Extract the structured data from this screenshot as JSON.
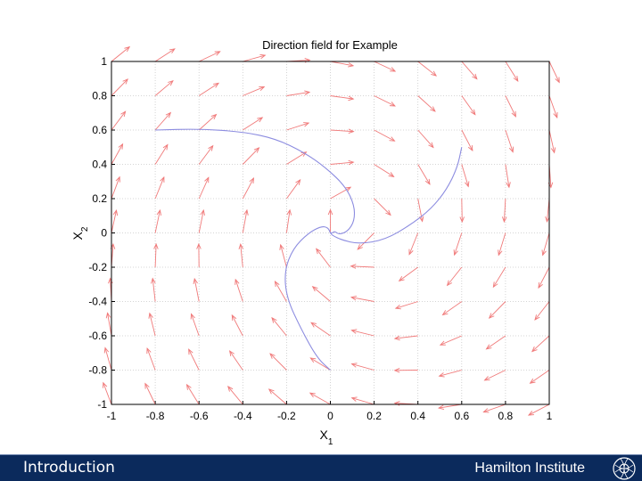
{
  "chart_data": {
    "type": "vector-field",
    "title": "Direction field for Example",
    "xlabel": "X",
    "xlabel_sub": "1",
    "ylabel": "X",
    "ylabel_sub": "2",
    "xlim": [
      -1,
      1
    ],
    "ylim": [
      -1,
      1
    ],
    "xticks": [
      "-1",
      "-0.8",
      "-0.6",
      "-0.4",
      "-0.2",
      "0",
      "0.2",
      "0.4",
      "0.6",
      "0.8",
      "1"
    ],
    "yticks": [
      "1",
      "0.8",
      "0.6",
      "0.4",
      "0.2",
      "0",
      "-0.2",
      "-0.4",
      "-0.6",
      "-0.8",
      "-1"
    ],
    "grid": true,
    "field_colors": {
      "arrows": "#f07a7a",
      "trajectories": "#8c8ce0",
      "grid": "#c8c8c8"
    },
    "trajectories": [
      {
        "points": [
          [
            -0.8,
            0.6
          ],
          [
            -0.6,
            0.607
          ],
          [
            -0.4,
            0.59
          ],
          [
            -0.25,
            0.55
          ],
          [
            -0.12,
            0.47
          ],
          [
            -0.02,
            0.38
          ],
          [
            0.07,
            0.27
          ],
          [
            0.11,
            0.16
          ],
          [
            0.11,
            0.07
          ],
          [
            0.08,
            0.01
          ],
          [
            0.04,
            -0.01
          ],
          [
            0.02,
            0.01
          ],
          [
            0.01,
            0.0
          ],
          [
            0.0,
            0.0
          ]
        ]
      },
      {
        "points": [
          [
            0.6,
            0.5
          ],
          [
            0.58,
            0.38
          ],
          [
            0.53,
            0.25
          ],
          [
            0.46,
            0.14
          ],
          [
            0.37,
            0.05
          ],
          [
            0.25,
            -0.04
          ],
          [
            0.13,
            -0.065
          ],
          [
            0.05,
            -0.04
          ],
          [
            0.01,
            -0.015
          ],
          [
            0.0,
            0.0
          ]
        ]
      },
      {
        "points": [
          [
            0.0,
            -0.8
          ],
          [
            -0.06,
            -0.73
          ],
          [
            -0.13,
            -0.57
          ],
          [
            -0.2,
            -0.38
          ],
          [
            -0.21,
            -0.22
          ],
          [
            -0.17,
            -0.09
          ],
          [
            -0.1,
            0.0
          ],
          [
            -0.04,
            0.04
          ],
          [
            -0.01,
            0.03
          ],
          [
            0.0,
            0.0
          ]
        ]
      }
    ]
  },
  "footer": {
    "left": "Introduction",
    "right": "Hamilton Institute",
    "logo": "hamilton-logo"
  }
}
